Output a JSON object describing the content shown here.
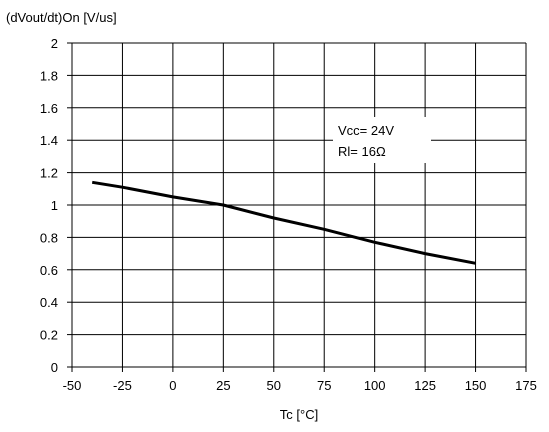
{
  "chart_data": {
    "type": "line",
    "title": "",
    "ylabel": "(dVout/dt)On [V/us]",
    "xlabel": "Tc [°C]",
    "xlim": [
      -50,
      175
    ],
    "ylim": [
      0,
      2
    ],
    "x_ticks": [
      -50,
      -25,
      0,
      25,
      50,
      75,
      100,
      125,
      150,
      175
    ],
    "y_ticks": [
      0,
      0.2,
      0.4,
      0.6,
      0.8,
      1,
      1.2,
      1.4,
      1.6,
      1.8,
      2
    ],
    "grid": true,
    "legend": "none",
    "annotations": [
      "Vcc= 24V",
      "Rl= 16Ω"
    ],
    "series": [
      {
        "x": [
          -40,
          -25,
          0,
          25,
          50,
          75,
          100,
          125,
          150
        ],
        "y": [
          1.14,
          1.11,
          1.05,
          1.0,
          0.92,
          0.85,
          0.77,
          0.7,
          0.64
        ],
        "color": "#000000"
      }
    ]
  }
}
